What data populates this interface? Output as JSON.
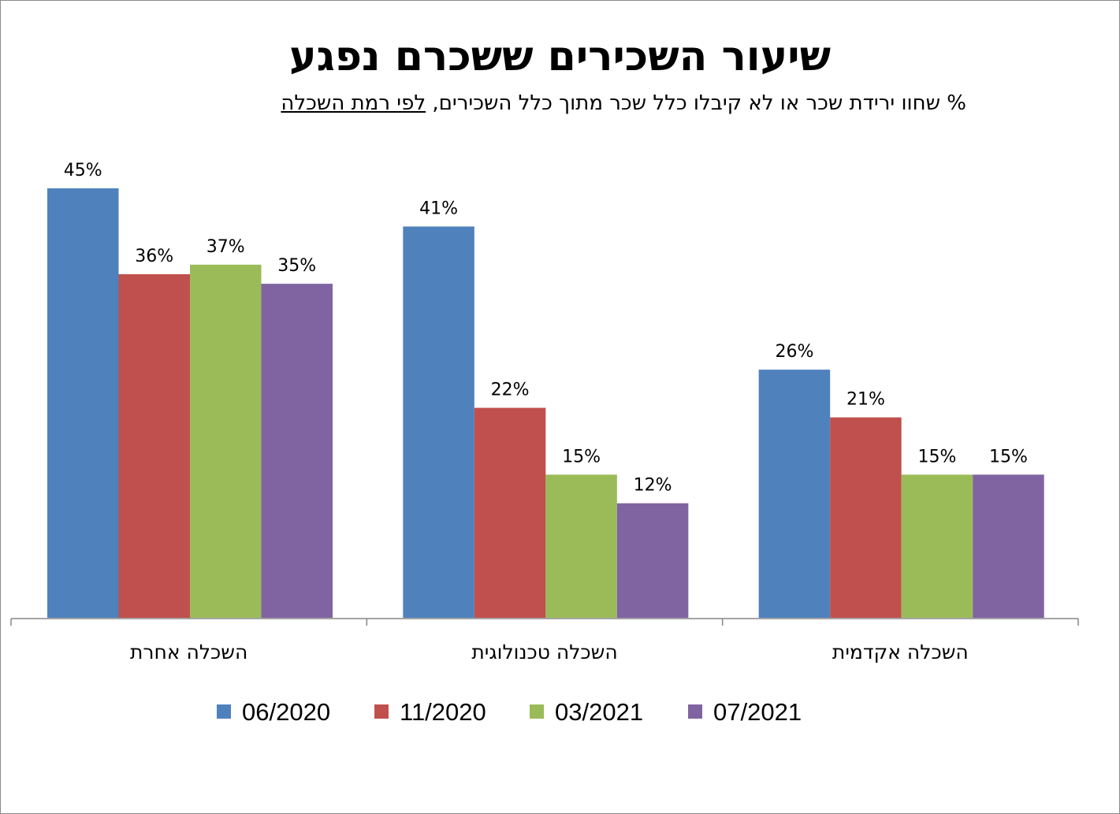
{
  "chart_data": {
    "type": "bar",
    "title": "שיעור השכירים ששכרם נפגע",
    "subtitle": "% שחוו ירידת שכר או לא קיבלו כלל שכר מתוך כלל השכירים,",
    "subtitle_underlined": "לפי רמת השכלה",
    "categories": [
      "השכלה אחרת",
      "השכלה טכנולוגית",
      "השכלה אקדמית"
    ],
    "series": [
      {
        "name": "06/2020",
        "color": "#4F81BD",
        "values": [
          45,
          41,
          26
        ],
        "labels": [
          "45%",
          "41%",
          "26%"
        ]
      },
      {
        "name": "11/2020",
        "color": "#C0504D",
        "values": [
          36,
          22,
          21
        ],
        "labels": [
          "36%",
          "22%",
          "21%"
        ]
      },
      {
        "name": "03/2021",
        "color": "#9BBB59",
        "values": [
          37,
          15,
          15
        ],
        "labels": [
          "37%",
          "15%",
          "15%"
        ]
      },
      {
        "name": "07/2021",
        "color": "#8064A2",
        "values": [
          35,
          12,
          15
        ],
        "labels": [
          "35%",
          "12%",
          "15%"
        ]
      }
    ],
    "ylim": [
      0,
      50
    ],
    "grid": false,
    "legend": "bottom"
  }
}
